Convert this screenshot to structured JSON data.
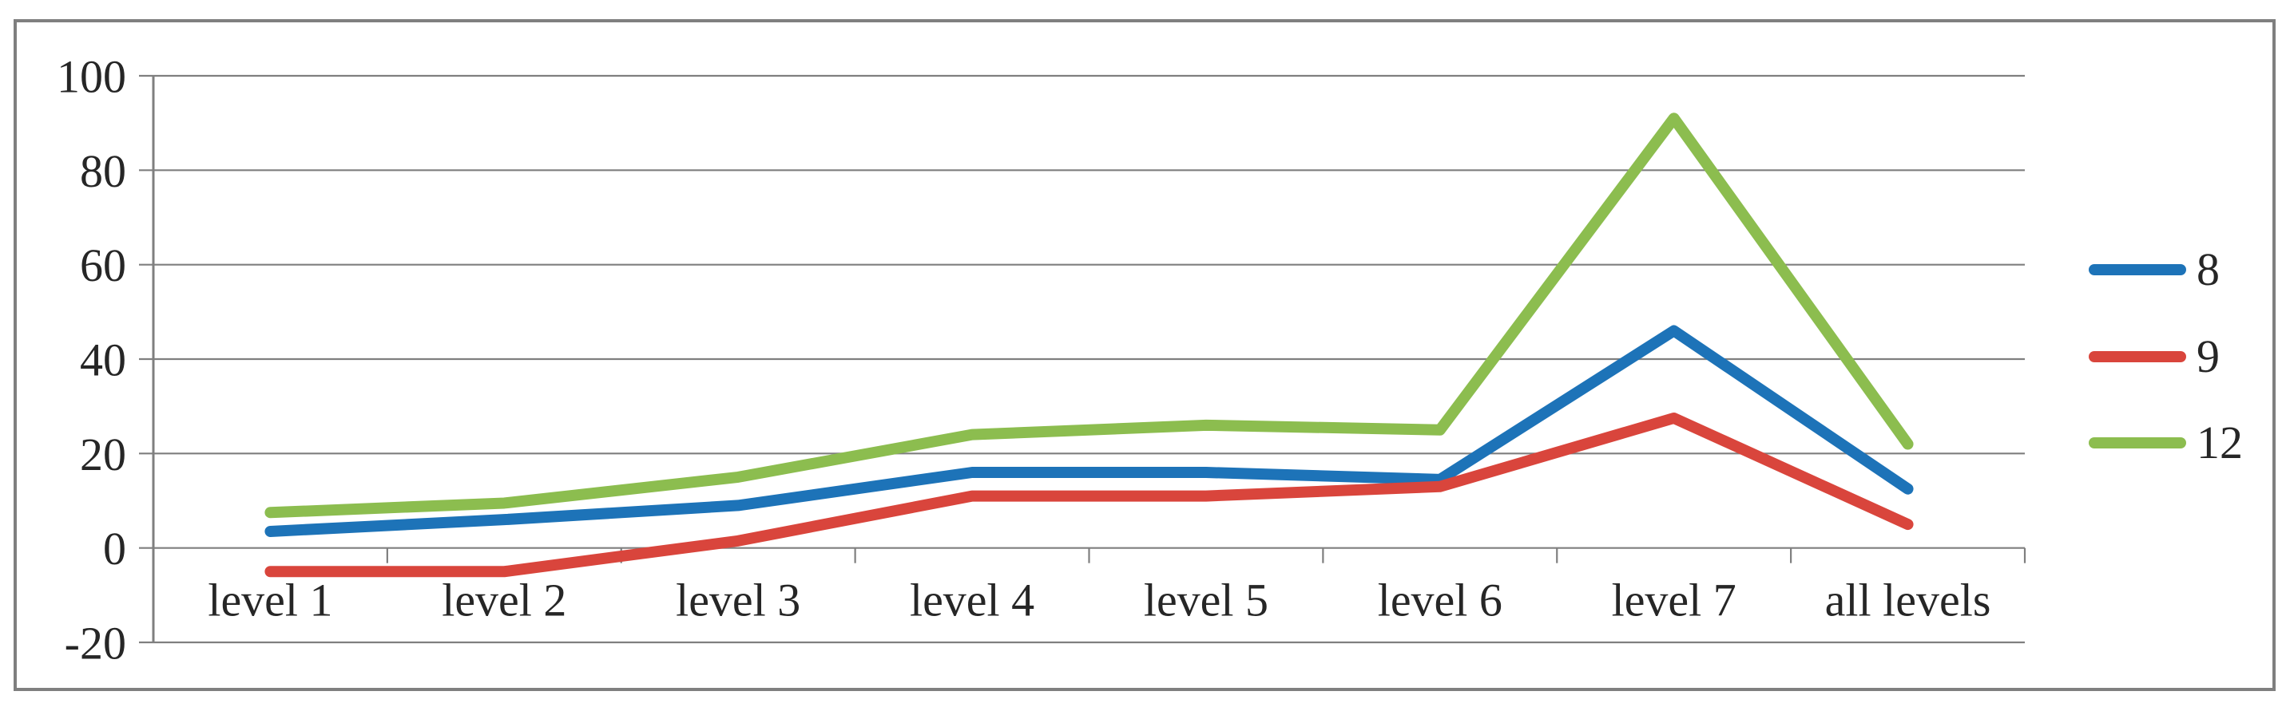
{
  "figure": {
    "background": "#ffffff",
    "border_color": "#7f7f7f"
  },
  "chart_data": {
    "type": "line",
    "title": "",
    "xlabel": "",
    "ylabel": "",
    "categories": [
      "level 1",
      "level 2",
      "level 3",
      "level 4",
      "level 5",
      "level 6",
      "level 7",
      "all levels"
    ],
    "series": [
      {
        "name": "8",
        "color": "#1d73b8",
        "values": [
          3.5,
          6,
          9,
          16,
          16,
          14.5,
          46,
          12.5
        ]
      },
      {
        "name": "9",
        "color": "#d9453c",
        "values": [
          -5,
          -5,
          1.5,
          11,
          11,
          13,
          27.5,
          5
        ]
      },
      {
        "name": "12",
        "color": "#8cbd4f",
        "values": [
          7.5,
          9.5,
          15,
          24,
          26,
          25,
          91,
          22
        ]
      }
    ],
    "ylim": [
      -20,
      100
    ],
    "ytick_step": 20,
    "yticks": [
      100,
      80,
      60,
      40,
      20,
      0,
      -20
    ],
    "grid": "horizontal",
    "legend_position": "right",
    "colors": {
      "gridline": "#7f7f7f",
      "axis": "#7f7f7f",
      "tick": "#7f7f7f",
      "text": "#262626"
    },
    "line_width": 14
  }
}
